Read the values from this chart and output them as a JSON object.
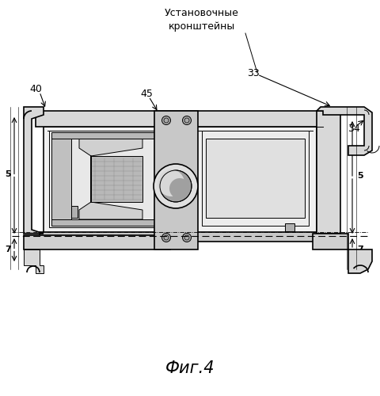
{
  "title": "Фиг.4",
  "annotation": "Установочные\nкронштейны",
  "bg_color": "#ffffff",
  "line_color": "#000000",
  "gray_fill": "#e8e8e8",
  "dark_fill": "#c0c0c0",
  "mid_fill": "#d4d4d4"
}
